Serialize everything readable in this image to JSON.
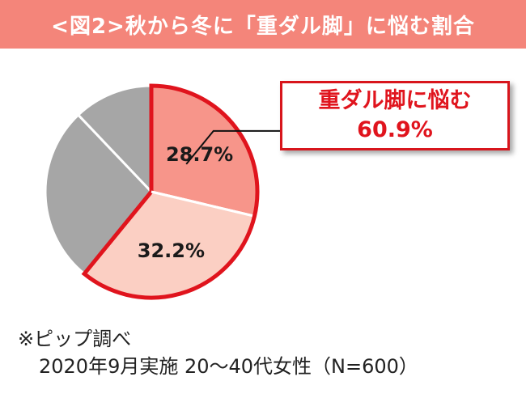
{
  "header": {
    "title": "<図2>秋から冬に「重ダル脚」に悩む割合"
  },
  "callout": {
    "label": "重ダル脚に悩む",
    "value": "60.9%"
  },
  "footnote": {
    "line1": "※ピップ調べ",
    "line2": "2020年9月実施 20〜40代女性（N=600）"
  },
  "colors": {
    "header_bg": "#f4857a",
    "highlight_border": "#e0141d",
    "slice_28": "#f7958a",
    "slice_32": "#fbcfc3",
    "slice_gray_dark": "#a6a6a6",
    "slice_gray_light": "#a6a6a6"
  },
  "chart_data": {
    "type": "pie",
    "start_angle_deg": 0,
    "direction": "clockwise",
    "slices": [
      {
        "value": 28.7,
        "label": "28.7%",
        "color": "#f7958a",
        "highlight": true
      },
      {
        "value": 32.2,
        "label": "32.2%",
        "color": "#fbcfc3",
        "highlight": true
      },
      {
        "value": 27.0,
        "label": "",
        "color": "#a6a6a6",
        "highlight": false
      },
      {
        "value": 12.1,
        "label": "",
        "color": "#a6a6a6",
        "highlight": false
      }
    ],
    "highlight_total": "60.9%"
  }
}
